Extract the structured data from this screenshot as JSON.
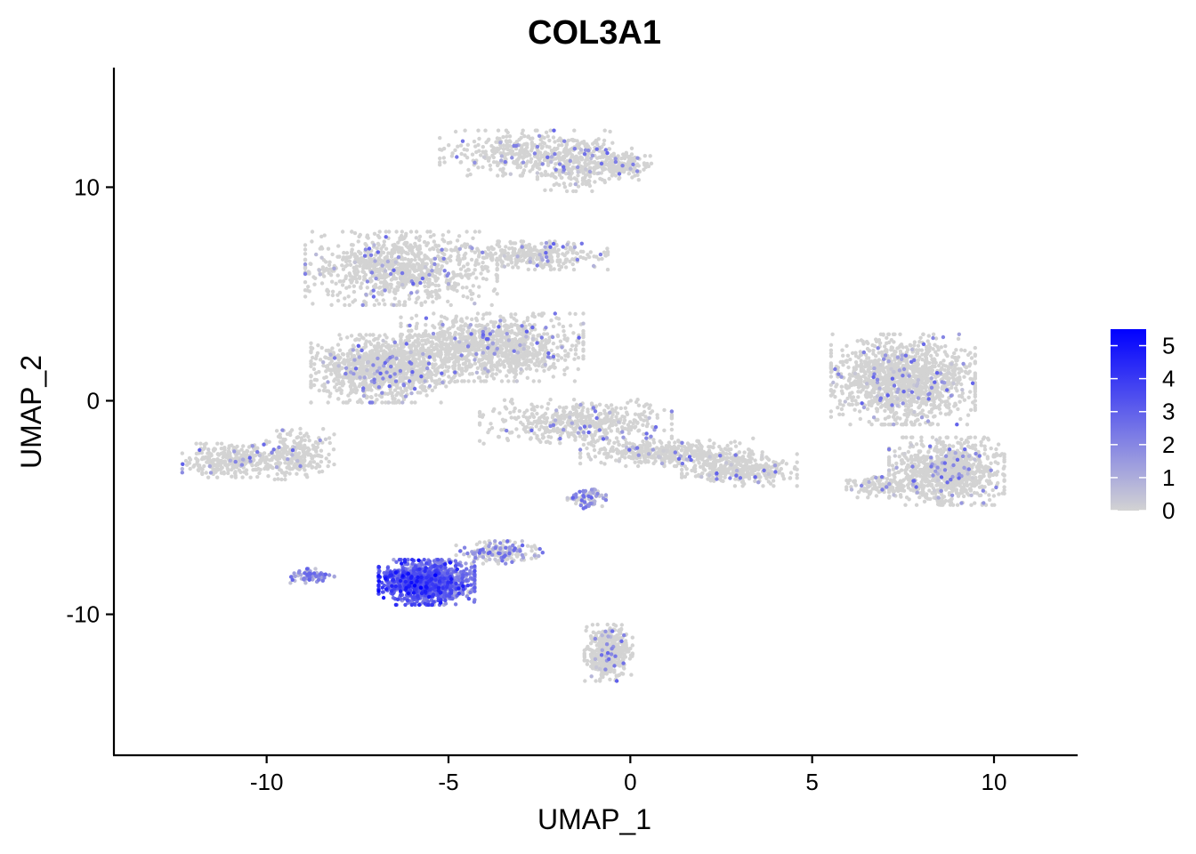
{
  "chart_data": {
    "type": "scatter",
    "title": "COL3A1",
    "xlabel": "UMAP_1",
    "ylabel": "UMAP_2",
    "xlim": [
      -14.2,
      12.3
    ],
    "ylim": [
      -16.6,
      15.6
    ],
    "x_ticks": [
      -10,
      -5,
      0,
      5,
      10
    ],
    "x_tick_labels": [
      "-10",
      "-5",
      "0",
      "5",
      "10"
    ],
    "y_ticks": [
      10,
      0,
      -10
    ],
    "y_tick_labels": [
      "10",
      "0",
      "-10"
    ],
    "grid": false,
    "legend": {
      "type": "colorbar",
      "placement": "right",
      "min": 0,
      "max": 5.5,
      "ticks": [
        5,
        4,
        3,
        2,
        1,
        0
      ],
      "tick_labels": [
        "5",
        "4",
        "3",
        "2",
        "1",
        "0"
      ],
      "low_color": "#d3d3d3",
      "high_color": "#0000ff"
    },
    "point_color_scale": {
      "low": "#d3d3d3",
      "high": "#0000ff"
    },
    "clusters": [
      {
        "cx": -2.6,
        "cy": 11.6,
        "sx": 2.0,
        "sy": 0.8,
        "n": 400,
        "expr_mean": 0.02
      },
      {
        "cx": -1.5,
        "cy": 11.0,
        "sx": 0.8,
        "sy": 0.9,
        "n": 200,
        "expr_mean": 0.02
      },
      {
        "cx": -0.2,
        "cy": 11.0,
        "sx": 0.6,
        "sy": 0.6,
        "n": 160,
        "expr_mean": 0.02
      },
      {
        "cx": -6.3,
        "cy": 6.2,
        "sx": 2.0,
        "sy": 1.3,
        "n": 900,
        "expr_mean": 0.05
      },
      {
        "cx": -2.6,
        "cy": 6.8,
        "sx": 1.5,
        "sy": 0.5,
        "n": 300,
        "expr_mean": 0.02
      },
      {
        "cx": -6.8,
        "cy": 1.5,
        "sx": 1.5,
        "sy": 1.2,
        "n": 1100,
        "expr_mean": 0.03
      },
      {
        "cx": -3.8,
        "cy": 2.5,
        "sx": 1.9,
        "sy": 1.2,
        "n": 1100,
        "expr_mean": 0.03
      },
      {
        "cx": -1.5,
        "cy": -1.0,
        "sx": 2.0,
        "sy": 0.8,
        "n": 500,
        "expr_mean": 0.02
      },
      {
        "cx": 1.0,
        "cy": -2.4,
        "sx": 1.8,
        "sy": 0.5,
        "n": 400,
        "expr_mean": 0.02
      },
      {
        "cx": 3.0,
        "cy": -3.2,
        "sx": 1.2,
        "sy": 0.6,
        "n": 350,
        "expr_mean": 0.02
      },
      {
        "cx": -11.0,
        "cy": -2.8,
        "sx": 1.0,
        "sy": 0.6,
        "n": 300,
        "expr_mean": 0.03
      },
      {
        "cx": -9.2,
        "cy": -2.5,
        "sx": 0.8,
        "sy": 0.9,
        "n": 250,
        "expr_mean": 0.03
      },
      {
        "cx": 7.5,
        "cy": 1.0,
        "sx": 1.5,
        "sy": 1.6,
        "n": 1300,
        "expr_mean": 0.03
      },
      {
        "cx": 8.7,
        "cy": -3.3,
        "sx": 1.2,
        "sy": 1.2,
        "n": 900,
        "expr_mean": 0.03
      },
      {
        "cx": 7.0,
        "cy": -4.0,
        "sx": 0.8,
        "sy": 0.4,
        "n": 150,
        "expr_mean": 0.02
      },
      {
        "cx": -1.2,
        "cy": -4.6,
        "sx": 0.4,
        "sy": 0.4,
        "n": 80,
        "expr_mean": 0.6
      },
      {
        "cx": -5.6,
        "cy": -8.5,
        "sx": 1.0,
        "sy": 0.8,
        "n": 1300,
        "expr_mean": 2.6
      },
      {
        "cx": -3.6,
        "cy": -7.1,
        "sx": 0.9,
        "sy": 0.4,
        "n": 180,
        "expr_mean": 0.4
      },
      {
        "cx": -8.8,
        "cy": -8.2,
        "sx": 0.5,
        "sy": 0.25,
        "n": 80,
        "expr_mean": 0.8
      },
      {
        "cx": -0.6,
        "cy": -11.8,
        "sx": 0.5,
        "sy": 1.0,
        "n": 450,
        "expr_mean": 0.02
      }
    ]
  }
}
